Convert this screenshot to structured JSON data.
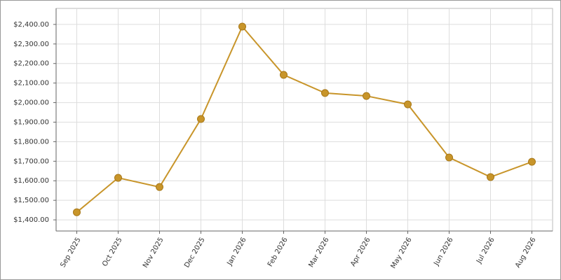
{
  "chart_data": {
    "type": "line",
    "categories": [
      "Sep 2025",
      "Oct 2025",
      "Nov 2025",
      "Dec 2025",
      "Jan 2026",
      "Feb 2026",
      "Mar 2026",
      "Apr 2026",
      "May 2026",
      "Jun 2026",
      "Jul 2026",
      "Aug 2026"
    ],
    "values": [
      1439,
      1615,
      1568,
      1916,
      2389,
      2142,
      2049,
      2034,
      1991,
      1719,
      1619,
      1697
    ],
    "color": "#c8952a",
    "ylim": [
      1343,
      2482
    ],
    "yticks": [
      {
        "value": 1400,
        "label": "$1,400.00"
      },
      {
        "value": 1500,
        "label": "$1,500.00"
      },
      {
        "value": 1600,
        "label": "$1,600.00"
      },
      {
        "value": 1700,
        "label": "$1,700.00"
      },
      {
        "value": 1800,
        "label": "$1,800.00"
      },
      {
        "value": 1900,
        "label": "$1,900.00"
      },
      {
        "value": 2000,
        "label": "$2,000.00"
      },
      {
        "value": 2100,
        "label": "$2,100.00"
      },
      {
        "value": 2200,
        "label": "$2,200.00"
      },
      {
        "value": 2300,
        "label": "$2,300.00"
      },
      {
        "value": 2400,
        "label": "$2,400.00"
      }
    ],
    "grid": true
  }
}
